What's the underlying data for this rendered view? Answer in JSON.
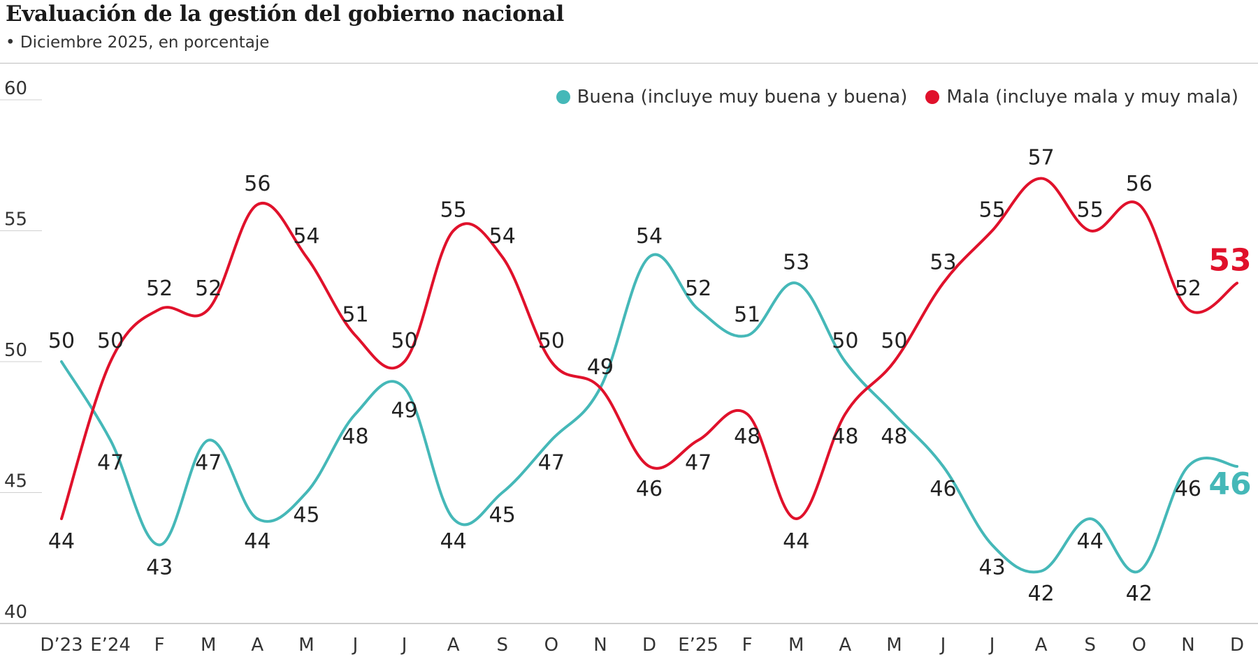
{
  "header": {
    "title": "Evaluación de la gestión del gobierno nacional",
    "subtitle": "• Diciembre 2025, en porcentaje"
  },
  "chart_data": {
    "type": "line",
    "title": "Evaluación de la gestión del gobierno nacional",
    "subtitle": "Diciembre 2025, en porcentaje",
    "xlabel": "",
    "ylabel": "",
    "ylim": [
      40,
      60
    ],
    "yticks": [
      40,
      45,
      50,
      55,
      60
    ],
    "grid": false,
    "legend_position": "top-right",
    "categories": [
      "D’23",
      "E’24",
      "F",
      "M",
      "A",
      "M",
      "J",
      "J",
      "A",
      "S",
      "O",
      "N",
      "D",
      "E’25",
      "F",
      "M",
      "A",
      "M",
      "J",
      "J",
      "A",
      "S",
      "O",
      "N",
      "D"
    ],
    "series": [
      {
        "name": "Buena (incluye muy buena y buena)",
        "color": "#45b8b8",
        "values": [
          50,
          47,
          43,
          47,
          44,
          45,
          48,
          49,
          44,
          45,
          47,
          49,
          54,
          52,
          51,
          53,
          50,
          48,
          46,
          43,
          42,
          44,
          42,
          46,
          46
        ]
      },
      {
        "name": "Mala (incluye mala y muy mala)",
        "color": "#e0112b",
        "values": [
          44,
          50,
          52,
          52,
          56,
          54,
          51,
          50,
          55,
          54,
          50,
          49,
          46,
          47,
          48,
          44,
          48,
          50,
          53,
          55,
          57,
          55,
          56,
          52,
          53
        ]
      }
    ]
  }
}
